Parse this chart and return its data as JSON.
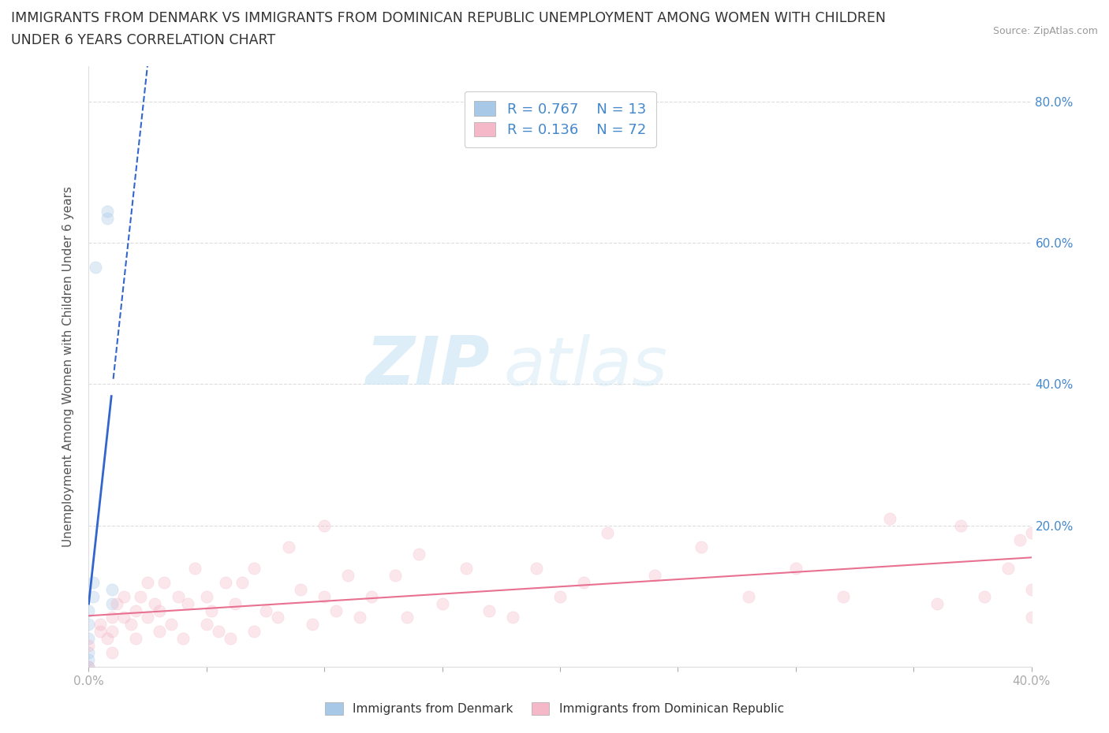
{
  "title_line1": "IMMIGRANTS FROM DENMARK VS IMMIGRANTS FROM DOMINICAN REPUBLIC UNEMPLOYMENT AMONG WOMEN WITH CHILDREN",
  "title_line2": "UNDER 6 YEARS CORRELATION CHART",
  "source_text": "Source: ZipAtlas.com",
  "ylabel": "Unemployment Among Women with Children Under 6 years",
  "watermark_zip": "ZIP",
  "watermark_atlas": "atlas",
  "xlim": [
    0.0,
    0.4
  ],
  "ylim": [
    0.0,
    0.85
  ],
  "denmark_color": "#a8c8e8",
  "dominican_color": "#f4b8c8",
  "denmark_line_color": "#3366cc",
  "dominican_line_color": "#e87090",
  "legend_R_denmark": "0.767",
  "legend_N_denmark": "13",
  "legend_R_dominican": "0.136",
  "legend_N_dominican": "72",
  "denmark_x": [
    0.0,
    0.0,
    0.0,
    0.0,
    0.0,
    0.0,
    0.002,
    0.002,
    0.003,
    0.008,
    0.008,
    0.01,
    0.01
  ],
  "denmark_y": [
    0.0,
    0.01,
    0.02,
    0.04,
    0.06,
    0.08,
    0.1,
    0.12,
    0.565,
    0.635,
    0.645,
    0.09,
    0.11
  ],
  "dominican_x": [
    0.0,
    0.0,
    0.005,
    0.005,
    0.008,
    0.01,
    0.01,
    0.01,
    0.012,
    0.015,
    0.015,
    0.018,
    0.02,
    0.02,
    0.022,
    0.025,
    0.025,
    0.028,
    0.03,
    0.03,
    0.032,
    0.035,
    0.038,
    0.04,
    0.042,
    0.045,
    0.05,
    0.05,
    0.052,
    0.055,
    0.058,
    0.06,
    0.062,
    0.065,
    0.07,
    0.07,
    0.075,
    0.08,
    0.085,
    0.09,
    0.095,
    0.1,
    0.1,
    0.105,
    0.11,
    0.115,
    0.12,
    0.13,
    0.135,
    0.14,
    0.15,
    0.16,
    0.17,
    0.18,
    0.19,
    0.2,
    0.21,
    0.22,
    0.24,
    0.26,
    0.28,
    0.3,
    0.32,
    0.34,
    0.36,
    0.37,
    0.38,
    0.39,
    0.395,
    0.4,
    0.4,
    0.4
  ],
  "dominican_y": [
    0.0,
    0.03,
    0.05,
    0.06,
    0.04,
    0.02,
    0.05,
    0.07,
    0.09,
    0.07,
    0.1,
    0.06,
    0.04,
    0.08,
    0.1,
    0.12,
    0.07,
    0.09,
    0.05,
    0.08,
    0.12,
    0.06,
    0.1,
    0.04,
    0.09,
    0.14,
    0.06,
    0.1,
    0.08,
    0.05,
    0.12,
    0.04,
    0.09,
    0.12,
    0.05,
    0.14,
    0.08,
    0.07,
    0.17,
    0.11,
    0.06,
    0.1,
    0.2,
    0.08,
    0.13,
    0.07,
    0.1,
    0.13,
    0.07,
    0.16,
    0.09,
    0.14,
    0.08,
    0.07,
    0.14,
    0.1,
    0.12,
    0.19,
    0.13,
    0.17,
    0.1,
    0.14,
    0.1,
    0.21,
    0.09,
    0.2,
    0.1,
    0.14,
    0.18,
    0.19,
    0.07,
    0.11
  ],
  "background_color": "#ffffff",
  "grid_color": "#dddddd",
  "title_fontsize": 12.5,
  "axis_label_fontsize": 11,
  "tick_fontsize": 11,
  "tick_color": "#aaaaaa",
  "right_tick_color": "#4488cc",
  "scatter_size": 120,
  "scatter_alpha": 0.35,
  "legend_text_color": "#4488cc"
}
